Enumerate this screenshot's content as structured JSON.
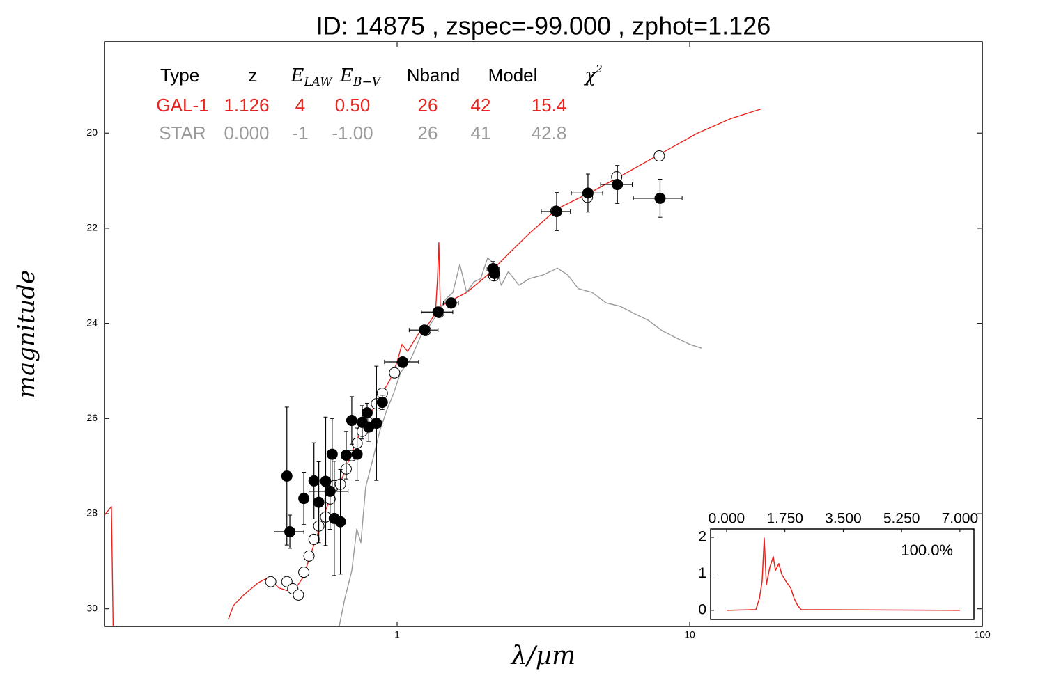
{
  "chart_data": [
    {
      "type": "sed",
      "title": "ID:  14875 , zspec=-99.000 , zphot=1.126",
      "x_label": "λ/µm",
      "y_label": "magnitude",
      "xscale": "log",
      "xlim": [
        0.1,
        100
      ],
      "xticks": [
        1,
        10,
        100
      ],
      "ylim": [
        30.37,
        18.08
      ],
      "yticks": [
        20,
        22,
        24,
        26,
        28,
        30
      ],
      "series": [
        {
          "kind": "line",
          "color": "#e8241f",
          "x": [
            0.1,
            0.1056,
            0.1074,
            null,
            0.265,
            0.276,
            0.299,
            0.334,
            0.363,
            0.394,
            0.428,
            0.451,
            0.477,
            0.504,
            0.547,
            0.594,
            0.645,
            0.7,
            0.76,
            0.848,
            0.947,
            1.0,
            1.039,
            1.086,
            1.179,
            1.28,
            1.352,
            1.374,
            1.389,
            1.405,
            1.509,
            1.729,
            2.04,
            2.4,
            2.83,
            3.53,
            4.64,
            6.1,
            8.03,
            10.56,
            13.9,
            17.6
          ],
          "values": [
            28.03,
            27.85,
            31.0,
            null,
            30.22,
            29.93,
            29.71,
            29.46,
            29.34,
            29.56,
            29.63,
            29.56,
            29.34,
            28.9,
            28.25,
            27.62,
            27.3,
            26.71,
            26.2,
            25.69,
            25.18,
            24.81,
            24.44,
            24.59,
            24.23,
            24.01,
            23.79,
            23.06,
            22.3,
            23.64,
            23.54,
            23.35,
            22.98,
            22.54,
            22.11,
            21.59,
            21.23,
            20.83,
            20.42,
            20.01,
            19.69,
            19.49
          ]
        },
        {
          "kind": "line",
          "color": "#9a9a9a",
          "x": [
            0.634,
            0.663,
            0.7,
            0.728,
            0.752,
            0.781,
            0.826,
            0.872,
            0.921,
            0.973,
            1.028,
            1.116,
            1.211,
            1.28,
            1.352,
            1.467,
            1.551,
            1.638,
            1.729,
            1.829,
            1.93,
            2.04,
            2.15,
            2.27,
            2.4,
            2.61,
            2.83,
            3.16,
            3.53,
            3.83,
            4.16,
            4.64,
            5.18,
            5.78,
            6.45,
            7.2,
            8.03,
            8.96,
            10.0,
            10.97
          ],
          "values": [
            30.37,
            29.78,
            29.2,
            28.32,
            28.61,
            27.44,
            26.86,
            26.27,
            25.83,
            25.47,
            25.03,
            24.74,
            24.23,
            24.08,
            23.86,
            23.49,
            23.35,
            22.76,
            23.35,
            23.13,
            23.06,
            22.62,
            22.76,
            23.2,
            22.91,
            23.2,
            23.06,
            22.98,
            22.84,
            22.98,
            23.27,
            23.35,
            23.57,
            23.64,
            23.79,
            23.93,
            24.15,
            24.3,
            24.44,
            24.52
          ]
        },
        {
          "kind": "points",
          "color": "#000000",
          "x": [
            0.37,
            0.42,
            0.44,
            0.46,
            0.48,
            0.5,
            0.52,
            0.54,
            0.57,
            0.59,
            0.61,
            0.64,
            0.67,
            0.7,
            0.73,
            0.76,
            0.79,
            0.85,
            0.89,
            0.98,
            1.045,
            1.25,
            1.39,
            1.53,
            2.14,
            3.49,
            4.47,
            5.63,
            7.87
          ],
          "values": [
            29.43,
            29.43,
            29.58,
            29.71,
            29.23,
            28.89,
            28.54,
            28.26,
            28.07,
            27.69,
            27.41,
            27.38,
            27.06,
            26.78,
            26.52,
            26.27,
            26.05,
            25.69,
            25.47,
            25.04,
            24.82,
            24.15,
            23.77,
            23.57,
            23.0,
            21.64,
            21.35,
            20.92,
            20.48
          ],
          "fill": "#ffffff"
        },
        {
          "kind": "points",
          "color": "#000000",
          "x": [
            0.42,
            0.43,
            0.48,
            0.52,
            0.54,
            0.57,
            0.59,
            0.6,
            0.61,
            0.64,
            0.67,
            0.7,
            0.73,
            0.76,
            0.79,
            0.8,
            0.85,
            0.89,
            1.045,
            1.24,
            1.38,
            1.53,
            2.13,
            2.15,
            3.51,
            4.49,
            5.66,
            7.92
          ],
          "values": [
            27.21,
            28.38,
            27.68,
            27.31,
            27.76,
            27.32,
            27.53,
            26.75,
            28.1,
            28.17,
            26.77,
            26.04,
            26.75,
            26.08,
            25.88,
            26.18,
            26.1,
            25.66,
            24.81,
            24.14,
            23.76,
            23.57,
            22.85,
            22.95,
            21.65,
            21.26,
            21.08,
            21.37
          ],
          "yerr": [
            1.45,
            0.35,
            0.55,
            0.8,
            0.85,
            1.35,
            0.8,
            0.75,
            1.2,
            1.1,
            0.5,
            0.5,
            0.55,
            0.35,
            0.2,
            0.3,
            1.2,
            0.15,
            0.1,
            0.05,
            0.1,
            0.05,
            0.15,
            0.15,
            0.4,
            0.4,
            0.4,
            0.4
          ],
          "xerr": [
            null,
            0.05,
            null,
            null,
            null,
            null,
            0.09,
            null,
            null,
            null,
            null,
            null,
            null,
            null,
            null,
            null,
            null,
            null,
            0.14,
            0.14,
            0.17,
            0.09,
            0.1,
            null,
            0.4,
            0.55,
            0.7,
            1.5
          ],
          "fill": "#000000"
        }
      ]
    },
    {
      "type": "line",
      "annotation": "100.0%",
      "xlim": [
        -0.48,
        7.42
      ],
      "xticks": [
        {
          "value": 0,
          "label": "0.000"
        },
        {
          "value": 1.75,
          "label": "1.750"
        },
        {
          "value": 3.5,
          "label": "3.500"
        },
        {
          "value": 5.25,
          "label": "5.250"
        },
        {
          "value": 7,
          "label": "7.000"
        }
      ],
      "ylim": [
        -0.25,
        2.23
      ],
      "yticks": [
        0,
        1,
        2
      ],
      "color": "#e8241f",
      "x": [
        0,
        0.878,
        0.983,
        1.066,
        1.129,
        1.192,
        1.296,
        1.401,
        1.464,
        1.568,
        1.652,
        1.777,
        1.924,
        2.028,
        2.133,
        2.237,
        7.0
      ],
      "values": [
        0,
        0.02,
        0.32,
        0.8,
        1.98,
        0.7,
        1.18,
        1.47,
        1.09,
        1.28,
        0.99,
        0.8,
        0.61,
        0.32,
        0.13,
        0.02,
        0
      ]
    }
  ],
  "fit_table": {
    "headers": [
      {
        "text": "Type"
      },
      {
        "text": "z"
      },
      {
        "text": "E",
        "sub": "LAW"
      },
      {
        "text": "E",
        "sub": "B−V"
      },
      {
        "text": "Nband"
      },
      {
        "text": "Model"
      },
      {
        "text": "χ",
        "sup": "2"
      }
    ],
    "rows": [
      {
        "color": "#e8241f",
        "cells": [
          "GAL-1",
          "1.126",
          "4",
          "0.50",
          "26",
          "42",
          "15.4"
        ]
      },
      {
        "color": "#9a9a9a",
        "cells": [
          "STAR",
          "0.000",
          "-1",
          "-1.00",
          "26",
          "41",
          "42.8"
        ]
      }
    ]
  }
}
